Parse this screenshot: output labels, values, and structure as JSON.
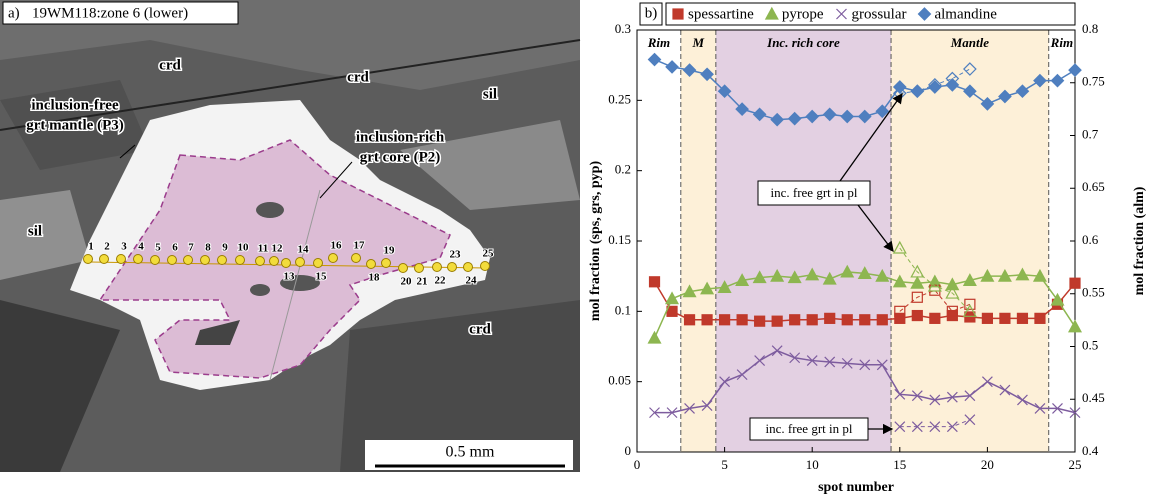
{
  "panel_a": {
    "label": "a)",
    "title": "19WM118:zone 6 (lower)",
    "scale_bar": "0.5 mm",
    "annotations": [
      "crd",
      "crd",
      "sil",
      "sil",
      "crd",
      "inclusion-free",
      "grt mantle (P3)",
      "inclusion-rich",
      "grt core (P2)"
    ],
    "spot_labels": [
      1,
      2,
      3,
      4,
      5,
      6,
      7,
      8,
      9,
      10,
      11,
      12,
      13,
      14,
      15,
      16,
      17,
      18,
      19,
      20,
      21,
      22,
      23,
      24,
      25
    ]
  },
  "chart_data": {
    "type": "line",
    "panel_label": "b)",
    "x_label": "spot number",
    "y_label": "mol fraction (sps, grs, pyp)",
    "y2_label": "mol fraction (alm)",
    "x": [
      1,
      2,
      3,
      4,
      5,
      6,
      7,
      8,
      9,
      10,
      11,
      12,
      13,
      14,
      15,
      16,
      17,
      18,
      19,
      20,
      21,
      22,
      23,
      24,
      25
    ],
    "xlim": [
      0,
      25
    ],
    "xticks": [
      0,
      5,
      10,
      15,
      20,
      25
    ],
    "ylim": [
      0,
      0.3
    ],
    "yticks": [
      0,
      0.05,
      0.1,
      0.15,
      0.2,
      0.25,
      0.3
    ],
    "y2lim": [
      0.4,
      0.8
    ],
    "y2ticks": [
      0.4,
      0.45,
      0.5,
      0.55,
      0.6,
      0.65,
      0.7,
      0.75,
      0.8
    ],
    "legend": "top",
    "series": [
      {
        "name": "spessartine",
        "color": "#c0392b",
        "marker": "square",
        "values": [
          0.121,
          0.1,
          0.094,
          0.094,
          0.094,
          0.094,
          0.093,
          0.093,
          0.094,
          0.094,
          0.095,
          0.094,
          0.094,
          0.094,
          0.095,
          0.097,
          0.095,
          0.097,
          0.096,
          0.095,
          0.095,
          0.095,
          0.095,
          0.105,
          0.12
        ]
      },
      {
        "name": "pyrope",
        "color": "#8db650",
        "marker": "triangle",
        "values": [
          0.081,
          0.109,
          0.114,
          0.116,
          0.117,
          0.122,
          0.124,
          0.125,
          0.124,
          0.126,
          0.123,
          0.128,
          0.127,
          0.125,
          0.121,
          0.12,
          0.121,
          0.119,
          0.122,
          0.125,
          0.125,
          0.126,
          0.125,
          0.108,
          0.089
        ]
      },
      {
        "name": "grossular",
        "color": "#7d5c9e",
        "marker": "cross",
        "values": [
          0.028,
          0.028,
          0.031,
          0.033,
          0.05,
          0.055,
          0.065,
          0.072,
          0.067,
          0.065,
          0.064,
          0.063,
          0.062,
          0.062,
          0.041,
          0.04,
          0.037,
          0.039,
          0.04,
          0.05,
          0.044,
          0.037,
          0.031,
          0.031,
          0.028
        ]
      },
      {
        "name": "almandine",
        "color": "#4f7fbf",
        "marker": "diamond",
        "axis": "y2",
        "values": [
          0.772,
          0.765,
          0.762,
          0.758,
          0.742,
          0.725,
          0.72,
          0.715,
          0.716,
          0.718,
          0.72,
          0.718,
          0.718,
          0.723,
          0.746,
          0.742,
          0.746,
          0.748,
          0.742,
          0.73,
          0.737,
          0.742,
          0.752,
          0.752,
          0.762
        ]
      }
    ],
    "extra_series": [
      {
        "color": "#c0392b",
        "marker": "square",
        "x": [
          15,
          16,
          17,
          18,
          19
        ],
        "values": [
          0.1,
          0.11,
          0.115,
          0.1,
          0.105
        ]
      },
      {
        "color": "#8db650",
        "marker": "triangle",
        "x": [
          15,
          16,
          17,
          18,
          19
        ],
        "values": [
          0.145,
          0.128,
          0.118,
          0.113,
          0.1
        ]
      },
      {
        "color": "#7d5c9e",
        "marker": "cross",
        "x": [
          15,
          16,
          17,
          18,
          19
        ],
        "values": [
          0.018,
          0.018,
          0.018,
          0.018,
          0.023
        ]
      },
      {
        "color": "#4f7fbf",
        "marker": "diamond",
        "axis": "y2",
        "x": [
          15,
          16,
          17,
          18,
          19
        ],
        "values": [
          0.74,
          0.742,
          0.748,
          0.754,
          0.763
        ]
      }
    ],
    "regions": [
      {
        "label": "Rim",
        "start": 0,
        "end": 2.5,
        "color": "#ffffff"
      },
      {
        "label": "M",
        "start": 2.5,
        "end": 4.5,
        "color": "#fdf0d8"
      },
      {
        "label": "Inc. rich core",
        "start": 4.5,
        "end": 14.5,
        "color": "#e3d0e2"
      },
      {
        "label": "Mantle",
        "start": 14.5,
        "end": 23.5,
        "color": "#fdf0d8"
      },
      {
        "label": "Rim",
        "start": 23.5,
        "end": 25,
        "color": "#ffffff"
      }
    ],
    "annotations": [
      "inc. free grt in pl",
      "inc. free grt in pl"
    ]
  }
}
